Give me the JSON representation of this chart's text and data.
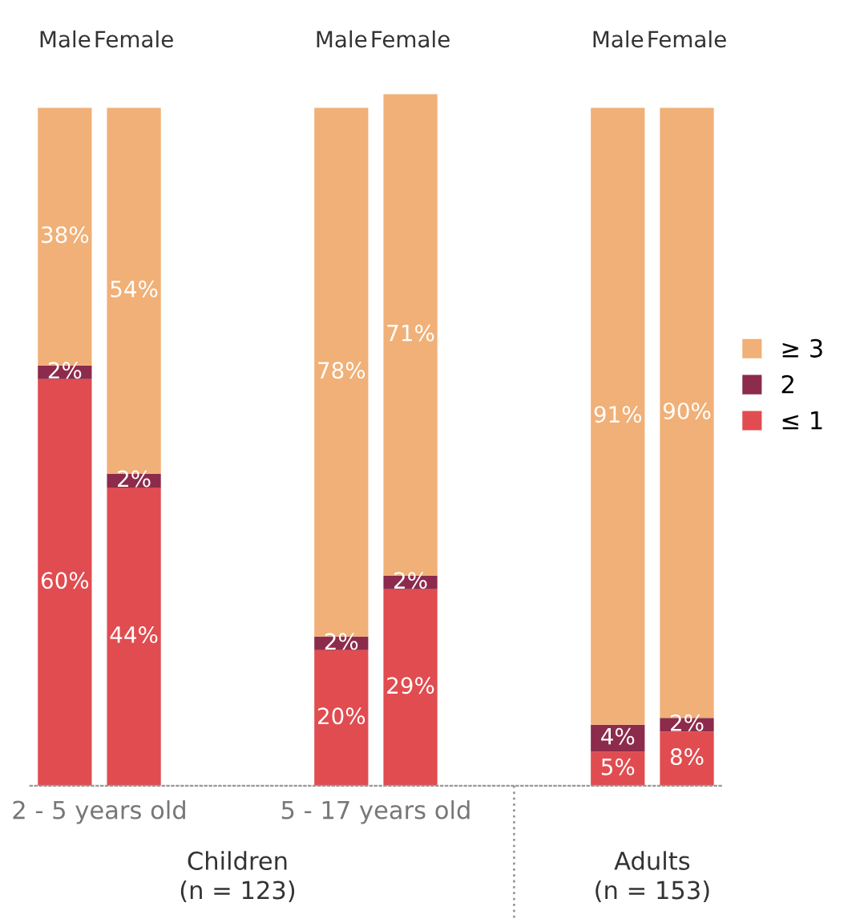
{
  "chart_data": {
    "type": "bar",
    "stacked": true,
    "tick_labels": "x",
    "legend": "right",
    "grid": false,
    "categories": [
      "Male",
      "Female",
      null,
      null,
      "Male",
      "Female",
      null,
      null,
      "Male",
      "Female"
    ],
    "series": [
      {
        "name": "≤ 1",
        "color": "#e04c50",
        "values": [
          60,
          44,
          null,
          null,
          20,
          29,
          null,
          null,
          5,
          8
        ],
        "value_labels": [
          "60%",
          "44%",
          null,
          null,
          "20%",
          "29%",
          null,
          null,
          "5%",
          "8%"
        ]
      },
      {
        "name": "2",
        "color": "#8c2b4b",
        "values": [
          2,
          2,
          null,
          null,
          2,
          2,
          null,
          null,
          4,
          2
        ],
        "value_labels": [
          "2%",
          "2%",
          null,
          null,
          "2%",
          "2%",
          null,
          null,
          "4%",
          "2%"
        ]
      },
      {
        "name": "≥ 3",
        "color": "#f0b077",
        "values": [
          38,
          54,
          null,
          null,
          78,
          71,
          null,
          null,
          91,
          90
        ],
        "value_labels": [
          "38%",
          "54%",
          null,
          null,
          "78%",
          "71%",
          null,
          null,
          "91%",
          "90%"
        ]
      }
    ],
    "annotations": [
      "2 - 5 years old",
      "5 - 17 years old",
      "Children\n(n = 123)",
      "Adults\n(n = 153)"
    ]
  }
}
